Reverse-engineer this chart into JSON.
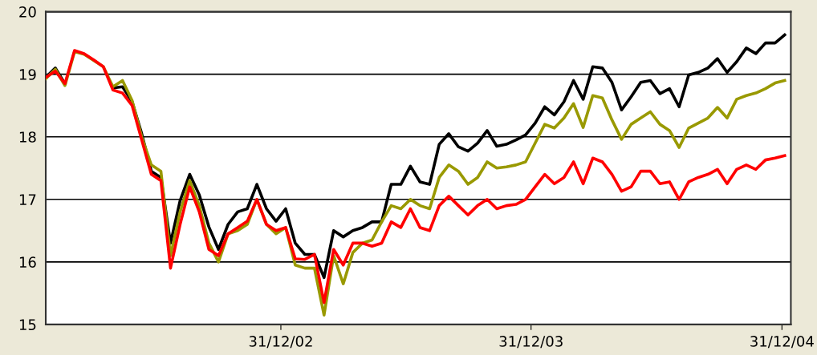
{
  "chart_data": {
    "type": "line",
    "x": [
      "2002-01-22",
      "2002-02-05",
      "2002-02-19",
      "2002-03-05",
      "2002-03-19",
      "2002-04-02",
      "2002-04-16",
      "2002-04-30",
      "2002-05-14",
      "2002-05-28",
      "2002-06-11",
      "2002-06-25",
      "2002-07-09",
      "2002-07-23",
      "2002-08-06",
      "2002-08-20",
      "2002-09-03",
      "2002-09-17",
      "2002-10-01",
      "2002-10-15",
      "2002-10-29",
      "2002-11-12",
      "2002-11-26",
      "2002-12-10",
      "2002-12-24",
      "2003-01-07",
      "2003-01-21",
      "2003-02-04",
      "2003-02-18",
      "2003-03-04",
      "2003-03-18",
      "2003-04-01",
      "2003-04-15",
      "2003-04-29",
      "2003-05-13",
      "2003-05-27",
      "2003-06-10",
      "2003-06-24",
      "2003-07-08",
      "2003-07-22",
      "2003-08-05",
      "2003-08-19",
      "2003-09-02",
      "2003-09-16",
      "2003-09-30",
      "2003-10-14",
      "2003-10-28",
      "2003-11-11",
      "2003-11-25",
      "2003-12-09",
      "2003-12-23",
      "2004-01-06",
      "2004-01-20",
      "2004-02-03",
      "2004-02-17",
      "2004-03-02",
      "2004-03-16",
      "2004-03-30",
      "2004-04-13",
      "2004-04-27",
      "2004-05-11",
      "2004-05-25",
      "2004-06-08",
      "2004-06-22",
      "2004-07-06",
      "2004-07-20",
      "2004-08-03",
      "2004-08-17",
      "2004-08-31",
      "2004-09-14",
      "2004-09-28",
      "2004-10-12",
      "2004-10-26",
      "2004-11-09",
      "2004-11-23",
      "2004-12-07",
      "2004-12-21",
      "2005-01-04"
    ],
    "series": [
      {
        "color": "#000000",
        "values": [
          18.95,
          19.1,
          18.85,
          null,
          null,
          null,
          null,
          18.78,
          18.8,
          18.56,
          18.05,
          17.45,
          17.35,
          16.3,
          16.98,
          17.4,
          17.07,
          16.56,
          16.2,
          16.6,
          16.8,
          16.85,
          17.24,
          16.85,
          16.65,
          16.85,
          16.3,
          16.12,
          16.12,
          15.75,
          16.5,
          16.4,
          16.5,
          16.55,
          16.64,
          16.64,
          17.24,
          17.24,
          17.53,
          17.28,
          17.24,
          17.88,
          18.05,
          17.84,
          17.77,
          17.9,
          18.1,
          17.85,
          17.88,
          17.95,
          18.03,
          18.22,
          18.48,
          18.35,
          18.56,
          18.9,
          18.6,
          19.12,
          19.1,
          18.87,
          18.43,
          18.64,
          18.87,
          18.9,
          18.69,
          18.77,
          18.48,
          18.99,
          19.03,
          19.1,
          19.25,
          19.03,
          19.2,
          19.42,
          19.33,
          19.5,
          19.5,
          19.63
        ]
      },
      {
        "color": "#999900",
        "values": [
          18.93,
          19.08,
          18.82,
          19.36,
          19.32,
          19.22,
          19.12,
          18.8,
          18.9,
          18.58,
          18.0,
          17.55,
          17.45,
          16.1,
          16.8,
          17.3,
          16.9,
          16.3,
          16.0,
          16.45,
          16.5,
          16.6,
          17.0,
          16.6,
          16.45,
          16.55,
          15.95,
          15.9,
          15.9,
          15.15,
          16.1,
          15.65,
          16.15,
          16.3,
          16.35,
          16.64,
          16.9,
          16.85,
          17.0,
          16.9,
          16.85,
          17.35,
          17.55,
          17.45,
          17.24,
          17.35,
          17.6,
          17.5,
          17.52,
          17.55,
          17.6,
          17.9,
          18.2,
          18.14,
          18.3,
          18.53,
          18.15,
          18.66,
          18.62,
          18.27,
          17.96,
          18.2,
          18.3,
          18.4,
          18.2,
          18.1,
          17.83,
          18.14,
          18.22,
          18.3,
          18.47,
          18.3,
          18.6,
          18.66,
          18.7,
          18.77,
          18.86,
          18.9
        ]
      },
      {
        "color": "#ff0000",
        "values": [
          18.95,
          19.05,
          18.85,
          19.38,
          19.33,
          19.23,
          19.12,
          18.75,
          18.7,
          18.5,
          17.95,
          17.4,
          17.3,
          15.9,
          16.6,
          17.2,
          16.8,
          16.2,
          16.1,
          16.45,
          16.55,
          16.65,
          17.0,
          16.6,
          16.5,
          16.55,
          16.05,
          16.04,
          16.12,
          15.35,
          16.2,
          15.95,
          16.3,
          16.3,
          16.25,
          16.3,
          16.64,
          16.55,
          16.85,
          16.55,
          16.5,
          16.9,
          17.05,
          16.9,
          16.75,
          16.9,
          17.0,
          16.85,
          16.9,
          16.92,
          17.0,
          17.2,
          17.4,
          17.25,
          17.35,
          17.6,
          17.25,
          17.66,
          17.6,
          17.4,
          17.13,
          17.2,
          17.45,
          17.45,
          17.25,
          17.28,
          17.0,
          17.28,
          17.35,
          17.4,
          17.48,
          17.25,
          17.48,
          17.55,
          17.48,
          17.63,
          17.66,
          17.7
        ]
      }
    ],
    "xlim": [
      "2002-01-22",
      "2005-01-13"
    ],
    "xticks": [
      {
        "value": "2002-12-31",
        "label": "31/12/02"
      },
      {
        "value": "2003-12-31",
        "label": "31/12/03"
      },
      {
        "value": "2004-12-31",
        "label": "31/12/04"
      }
    ],
    "ylim": [
      15,
      20
    ],
    "yticks": [
      15,
      16,
      17,
      18,
      19,
      20
    ],
    "grid": "y"
  }
}
